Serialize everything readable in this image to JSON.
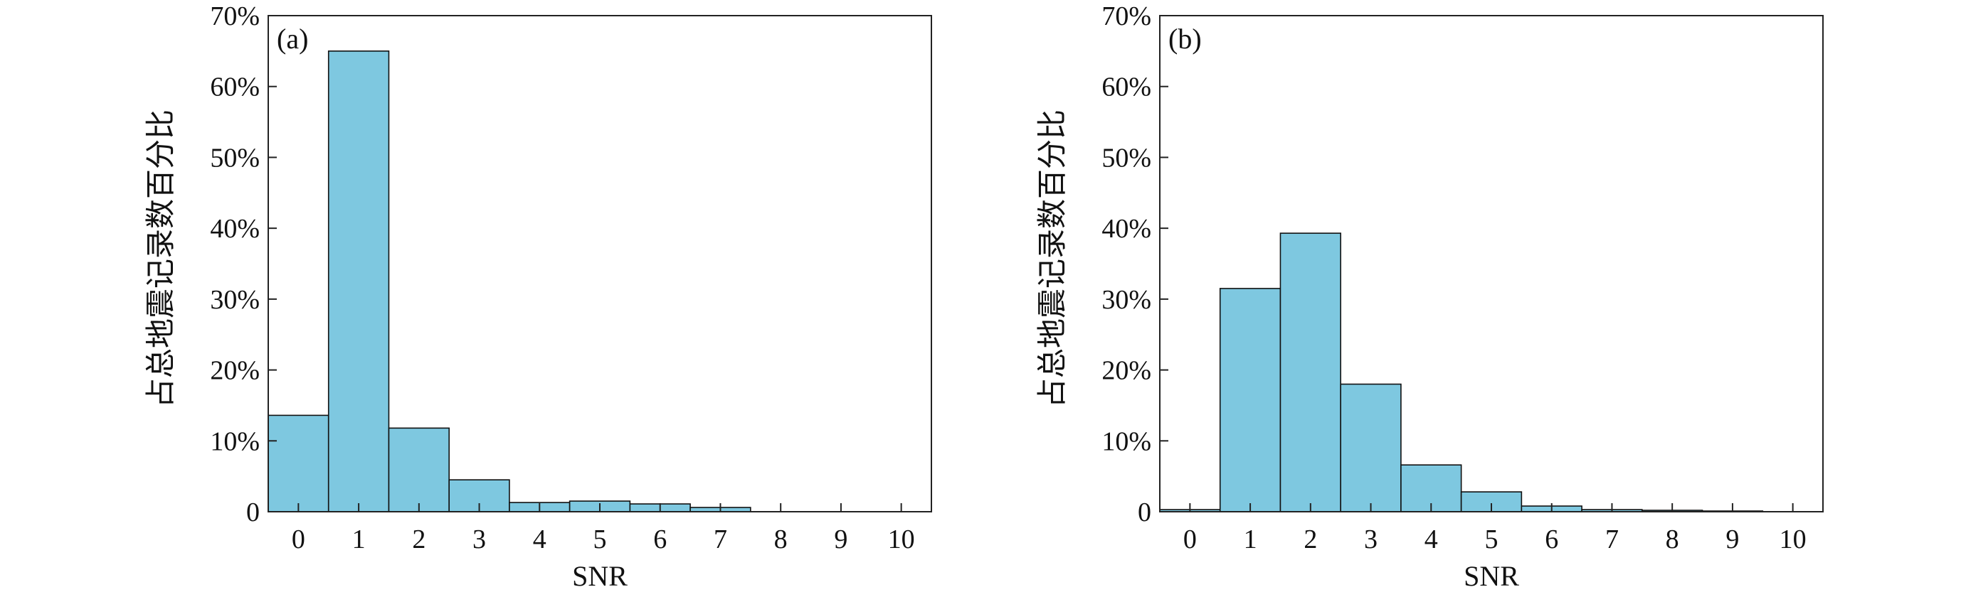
{
  "chart_data": [
    {
      "type": "bar",
      "panel_label": "(a)",
      "categories": [
        "0",
        "1",
        "2",
        "3",
        "4",
        "5",
        "6",
        "7",
        "8",
        "9",
        "10"
      ],
      "values": [
        13.6,
        65.0,
        11.8,
        4.5,
        1.3,
        1.5,
        1.1,
        0.6,
        0,
        0,
        0
      ],
      "xlabel": "SNR",
      "ylabel": "占总地震记录数百分比",
      "ylim": [
        0,
        70
      ],
      "yticks": [
        "0",
        "10%",
        "20%",
        "30%",
        "40%",
        "50%",
        "60%",
        "70%"
      ],
      "grid": false,
      "bar_color": "#7ec8e0"
    },
    {
      "type": "bar",
      "panel_label": "(b)",
      "categories": [
        "0",
        "1",
        "2",
        "3",
        "4",
        "5",
        "6",
        "7",
        "8",
        "9",
        "10"
      ],
      "values": [
        0.3,
        31.5,
        39.3,
        18.0,
        6.6,
        2.8,
        0.8,
        0.3,
        0.2,
        0.1,
        0
      ],
      "xlabel": "SNR",
      "ylabel": "占总地震记录数百分比",
      "ylim": [
        0,
        70
      ],
      "yticks": [
        "0",
        "10%",
        "20%",
        "30%",
        "40%",
        "50%",
        "60%",
        "70%"
      ],
      "grid": false,
      "bar_color": "#7ec8e0"
    }
  ]
}
